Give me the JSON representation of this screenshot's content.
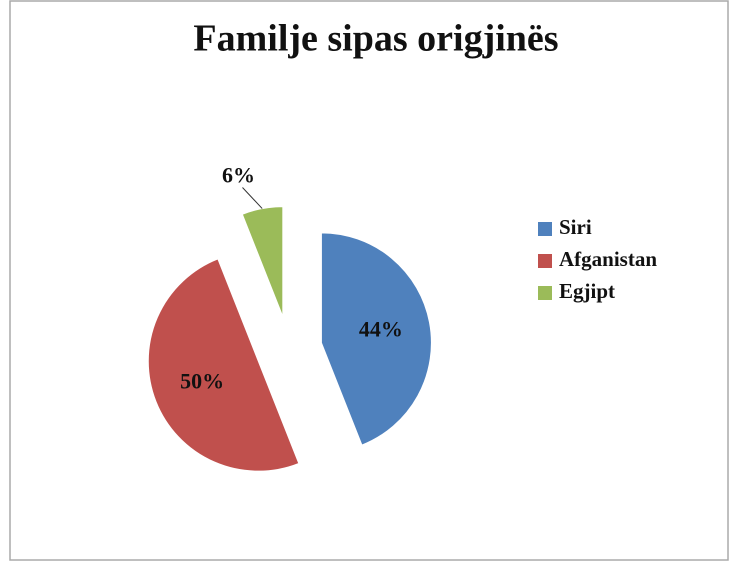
{
  "chart_data": {
    "type": "pie",
    "title": "Familje sipas origjinës",
    "categories": [
      "Siri",
      "Afganistan",
      "Egjipt"
    ],
    "values": [
      44,
      50,
      6
    ],
    "value_labels": [
      "44%",
      "50%",
      "6%"
    ],
    "colors": [
      "#4f81bd",
      "#c0504d",
      "#9bbb59"
    ],
    "legend": "right",
    "exploded": true
  }
}
